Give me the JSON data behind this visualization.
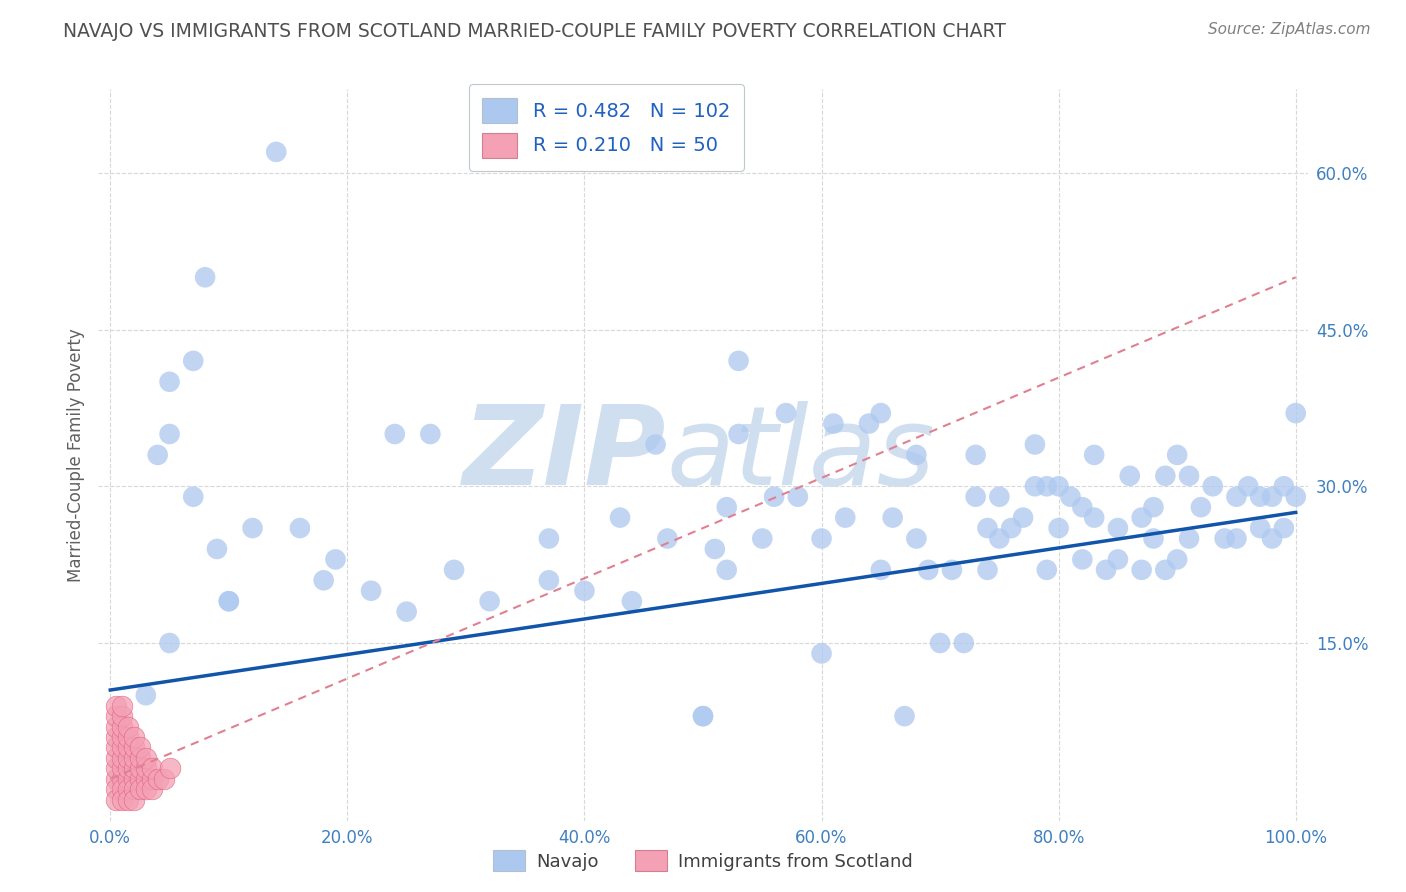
{
  "title": "NAVAJO VS IMMIGRANTS FROM SCOTLAND MARRIED-COUPLE FAMILY POVERTY CORRELATION CHART",
  "source": "Source: ZipAtlas.com",
  "ylabel": "Married-Couple Family Poverty",
  "xlim": [
    -1,
    101
  ],
  "ylim": [
    -2,
    68
  ],
  "xticks": [
    0,
    20,
    40,
    60,
    80,
    100
  ],
  "xtick_labels": [
    "0.0%",
    "20.0%",
    "40.0%",
    "60.0%",
    "80.0%",
    "100.0%"
  ],
  "yticks": [
    0,
    15,
    30,
    45,
    60
  ],
  "ytick_labels": [
    "",
    "15.0%",
    "30.0%",
    "45.0%",
    "60.0%"
  ],
  "navajo_R": 0.482,
  "navajo_N": 102,
  "scotland_R": 0.21,
  "scotland_N": 50,
  "navajo_color": "#adc8ef",
  "navajo_edge_color": "none",
  "scotland_color": "#f4a0b5",
  "scotland_edge_color": "#e06080",
  "navajo_line_color": "#1155aa",
  "scotland_line_color": "#e08090",
  "watermark_zip": "ZIP",
  "watermark_atlas": "atlas",
  "watermark_color": "#d0dff0",
  "background_color": "#ffffff",
  "grid_color": "#d8d8d8",
  "title_color": "#505050",
  "source_color": "#808080",
  "axis_label_color": "#606060",
  "tick_color": "#4080c0",
  "legend_navajo_label": "Navajo",
  "legend_scotland_label": "Immigrants from Scotland",
  "navajo_x": [
    8,
    14,
    5,
    5,
    18,
    7,
    7,
    4,
    3,
    16,
    22,
    24,
    27,
    10,
    10,
    12,
    19,
    5,
    9,
    25,
    29,
    32,
    37,
    37,
    40,
    43,
    44,
    46,
    47,
    50,
    50,
    51,
    52,
    52,
    53,
    53,
    55,
    56,
    57,
    58,
    60,
    60,
    61,
    62,
    64,
    65,
    65,
    66,
    67,
    68,
    68,
    69,
    70,
    71,
    72,
    73,
    73,
    74,
    74,
    75,
    75,
    76,
    77,
    78,
    78,
    79,
    79,
    80,
    80,
    81,
    82,
    82,
    83,
    83,
    84,
    85,
    85,
    86,
    87,
    87,
    88,
    88,
    89,
    89,
    90,
    90,
    91,
    91,
    92,
    93,
    94,
    95,
    95,
    96,
    97,
    97,
    98,
    98,
    99,
    99,
    100,
    100
  ],
  "navajo_y": [
    50,
    62,
    35,
    40,
    21,
    42,
    29,
    33,
    10,
    26,
    20,
    35,
    35,
    19,
    19,
    26,
    23,
    15,
    24,
    18,
    22,
    19,
    21,
    25,
    20,
    27,
    19,
    34,
    25,
    8,
    8,
    24,
    22,
    28,
    42,
    35,
    25,
    29,
    37,
    29,
    14,
    25,
    36,
    27,
    36,
    22,
    37,
    27,
    8,
    25,
    33,
    22,
    15,
    22,
    15,
    29,
    33,
    26,
    22,
    25,
    29,
    26,
    27,
    34,
    30,
    30,
    22,
    26,
    30,
    29,
    28,
    23,
    27,
    33,
    22,
    23,
    26,
    31,
    22,
    27,
    28,
    25,
    22,
    31,
    23,
    33,
    25,
    31,
    28,
    30,
    25,
    29,
    25,
    30,
    26,
    29,
    25,
    29,
    26,
    30,
    37,
    29
  ],
  "scotland_x": [
    0.5,
    0.5,
    0.5,
    0.5,
    0.5,
    0.5,
    0.5,
    0.5,
    0.5,
    0.5,
    1,
    1,
    1,
    1,
    1,
    1,
    1,
    1,
    1,
    1,
    1.5,
    1.5,
    1.5,
    1.5,
    1.5,
    1.5,
    1.5,
    1.5,
    2,
    2,
    2,
    2,
    2,
    2,
    2,
    2.5,
    2.5,
    2.5,
    2.5,
    2.5,
    3,
    3,
    3,
    3,
    3.5,
    3.5,
    3.5,
    4,
    4.5,
    5
  ],
  "scotland_y": [
    2,
    3,
    4,
    5,
    6,
    7,
    8,
    1,
    0,
    9,
    2,
    3,
    4,
    5,
    6,
    7,
    8,
    1,
    0,
    9,
    2,
    3,
    4,
    5,
    6,
    7,
    1,
    0,
    2,
    3,
    4,
    5,
    6,
    1,
    0,
    2,
    3,
    4,
    5,
    1,
    2,
    3,
    4,
    1,
    2,
    3,
    1,
    2,
    2,
    3
  ],
  "navajo_line_x0": 0,
  "navajo_line_y0": 10.5,
  "navajo_line_x1": 100,
  "navajo_line_y1": 27.5,
  "scotland_line_x0": 0,
  "scotland_line_y0": 2,
  "scotland_line_x1": 100,
  "scotland_line_y1": 50
}
